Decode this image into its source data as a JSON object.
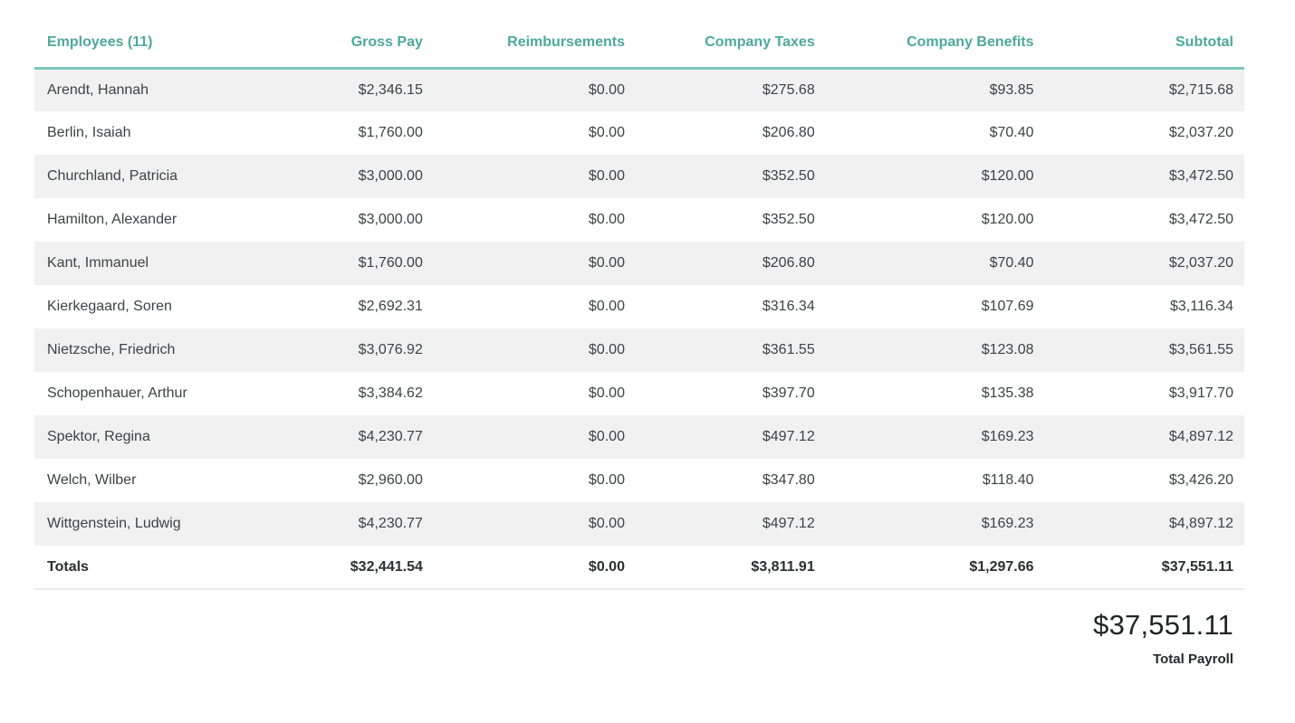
{
  "table": {
    "columns": [
      {
        "label": "Employees (11)"
      },
      {
        "label": "Gross Pay"
      },
      {
        "label": "Reimbursements"
      },
      {
        "label": "Company Taxes"
      },
      {
        "label": "Company Benefits"
      },
      {
        "label": "Subtotal"
      }
    ],
    "rows": [
      {
        "name": "Arendt, Hannah",
        "gross": "$2,346.15",
        "reimb": "$0.00",
        "taxes": "$275.68",
        "benefits": "$93.85",
        "subtotal": "$2,715.68"
      },
      {
        "name": "Berlin, Isaiah",
        "gross": "$1,760.00",
        "reimb": "$0.00",
        "taxes": "$206.80",
        "benefits": "$70.40",
        "subtotal": "$2,037.20"
      },
      {
        "name": "Churchland, Patricia",
        "gross": "$3,000.00",
        "reimb": "$0.00",
        "taxes": "$352.50",
        "benefits": "$120.00",
        "subtotal": "$3,472.50"
      },
      {
        "name": "Hamilton, Alexander",
        "gross": "$3,000.00",
        "reimb": "$0.00",
        "taxes": "$352.50",
        "benefits": "$120.00",
        "subtotal": "$3,472.50"
      },
      {
        "name": "Kant, Immanuel",
        "gross": "$1,760.00",
        "reimb": "$0.00",
        "taxes": "$206.80",
        "benefits": "$70.40",
        "subtotal": "$2,037.20"
      },
      {
        "name": "Kierkegaard, Soren",
        "gross": "$2,692.31",
        "reimb": "$0.00",
        "taxes": "$316.34",
        "benefits": "$107.69",
        "subtotal": "$3,116.34"
      },
      {
        "name": "Nietzsche, Friedrich",
        "gross": "$3,076.92",
        "reimb": "$0.00",
        "taxes": "$361.55",
        "benefits": "$123.08",
        "subtotal": "$3,561.55"
      },
      {
        "name": "Schopenhauer, Arthur",
        "gross": "$3,384.62",
        "reimb": "$0.00",
        "taxes": "$397.70",
        "benefits": "$135.38",
        "subtotal": "$3,917.70"
      },
      {
        "name": "Spektor, Regina",
        "gross": "$4,230.77",
        "reimb": "$0.00",
        "taxes": "$497.12",
        "benefits": "$169.23",
        "subtotal": "$4,897.12"
      },
      {
        "name": "Welch, Wilber",
        "gross": "$2,960.00",
        "reimb": "$0.00",
        "taxes": "$347.80",
        "benefits": "$118.40",
        "subtotal": "$3,426.20"
      },
      {
        "name": "Wittgenstein, Ludwig",
        "gross": "$4,230.77",
        "reimb": "$0.00",
        "taxes": "$497.12",
        "benefits": "$169.23",
        "subtotal": "$4,897.12"
      }
    ],
    "totals": {
      "name": "Totals",
      "gross": "$32,441.54",
      "reimb": "$0.00",
      "taxes": "$3,811.91",
      "benefits": "$1,297.66",
      "subtotal": "$37,551.11"
    }
  },
  "summary": {
    "amount": "$37,551.11",
    "label": "Total Payroll"
  },
  "colors": {
    "header_text": "#4CA99C",
    "header_rule": "#7AC6BC",
    "row_stripe": "#F1F1F2",
    "body_text": "#3E4245",
    "totals_divider": "#ECECEE"
  }
}
